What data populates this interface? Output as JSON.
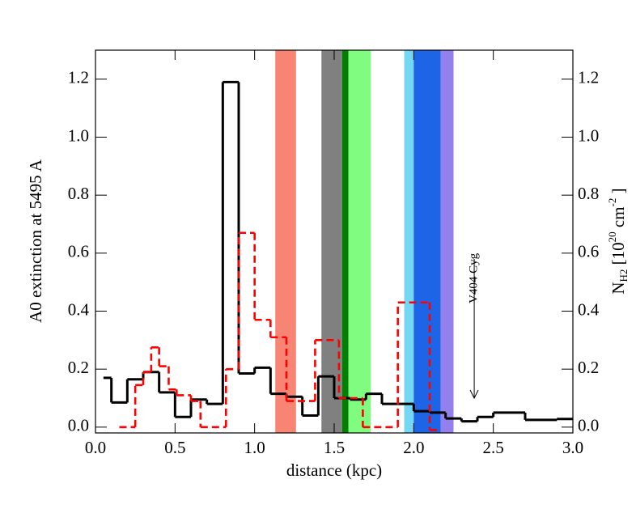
{
  "chart_data": {
    "type": "step",
    "xlabel": "distance (kpc)",
    "ylabel": "A0 extinction at 5495 A",
    "y2label": [
      "N",
      "H2",
      " [10",
      "20",
      " cm",
      "-2",
      " ]"
    ],
    "xlim": [
      0,
      3
    ],
    "ylim": [
      -0.02,
      1.3
    ],
    "y2lim": [
      -0.02,
      1.3
    ],
    "xticks": [
      {
        "value": 0,
        "label": "0.0"
      },
      0.5,
      {
        "value": 1,
        "label": "1.0"
      },
      1.5,
      {
        "value": 2,
        "label": "2.0"
      },
      2.5,
      {
        "value": 3,
        "label": "3.0"
      }
    ],
    "yticks": [
      {
        "value": 0,
        "label": "0.0"
      },
      0.2,
      0.4,
      0.6,
      0.8,
      {
        "value": 1,
        "label": "1.0"
      },
      1.2
    ],
    "y2ticks": [
      {
        "value": 0,
        "label": "0.0"
      },
      0.2,
      0.4,
      0.6,
      0.8,
      {
        "value": 1,
        "label": "1.0"
      },
      1.2
    ],
    "bands": [
      {
        "x": [
          1.13,
          1.26
        ],
        "color": "#f88474"
      },
      {
        "x": [
          1.42,
          1.55
        ],
        "color": "#808080"
      },
      {
        "x": [
          1.55,
          1.59
        ],
        "color": "#008000"
      },
      {
        "x": [
          1.59,
          1.73
        ],
        "color": "#80fc80"
      },
      {
        "x": [
          1.94,
          2.0
        ],
        "color": "#74d8f4"
      },
      {
        "x": [
          2.0,
          2.17
        ],
        "color": "#1e64e6"
      },
      {
        "x": [
          2.17,
          2.25
        ],
        "color": "#9480ec"
      }
    ],
    "series": [
      {
        "color": "#000000",
        "dashed": false,
        "bins": [
          0.05,
          0.1,
          0.2,
          0.3,
          0.4,
          0.5,
          0.6,
          0.7,
          0.8,
          0.9,
          1.0,
          1.1,
          1.2,
          1.3,
          1.4,
          1.5,
          1.6,
          1.7,
          1.8,
          1.9,
          2.0,
          2.1,
          2.2,
          2.3,
          2.4,
          2.5,
          2.7,
          2.9,
          3.0
        ],
        "values": [
          0.17,
          0.085,
          0.165,
          0.19,
          0.12,
          0.035,
          0.095,
          0.08,
          1.19,
          0.185,
          0.205,
          0.115,
          0.105,
          0.04,
          0.175,
          0.1,
          0.095,
          0.115,
          0.08,
          0.08,
          0.055,
          0.05,
          0.03,
          0.02,
          0.035,
          0.05,
          0.025,
          0.028
        ]
      },
      {
        "color": "#ff0000",
        "dashed": true,
        "axis": "y2",
        "bins": [
          0.15,
          0.25,
          0.3,
          0.35,
          0.4,
          0.46,
          0.51,
          0.6,
          0.66,
          0.82,
          0.9,
          1.0,
          1.1,
          1.2,
          1.38,
          1.53,
          1.68,
          1.9,
          2.1,
          2.17
        ],
        "values": [
          0.0,
          0.145,
          0.19,
          0.275,
          0.21,
          0.13,
          0.11,
          0.09,
          0.0,
          0.2,
          0.67,
          0.37,
          0.31,
          0.09,
          0.3,
          0.1,
          0.0,
          0.43,
          -0.01
        ]
      }
    ],
    "annotation": {
      "text": "V404 Cyg",
      "x": 2.38
    }
  }
}
